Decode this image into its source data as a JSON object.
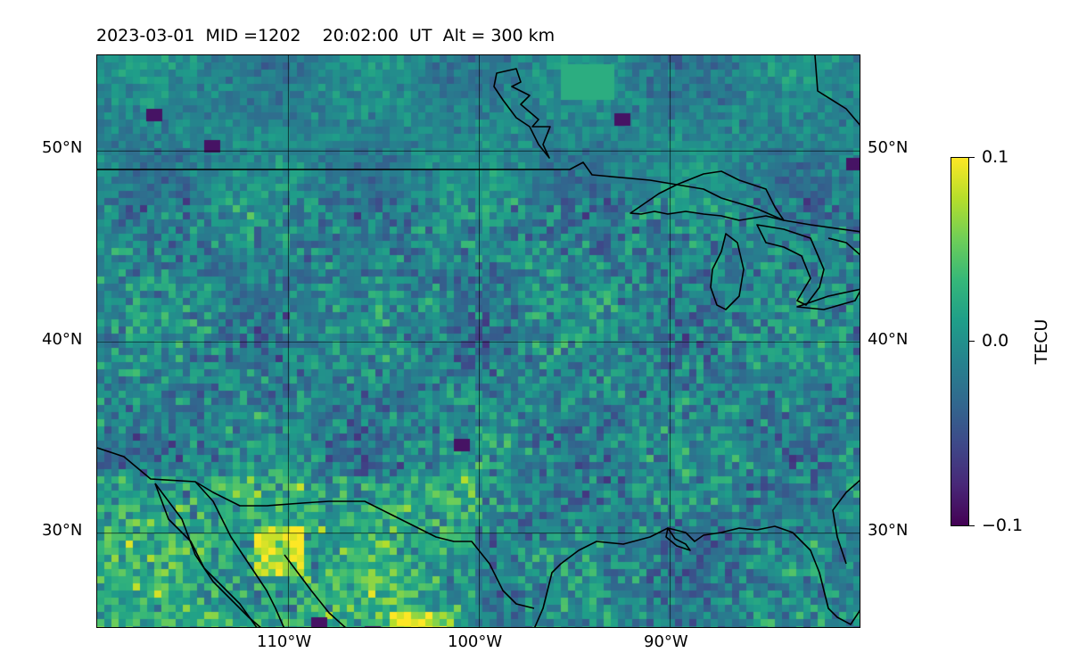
{
  "title": "2023-03-01  MID =1202    20:02:00  UT  Alt = 300 km",
  "map": {
    "type": "heatmap",
    "extent_lon": [
      -120,
      -80
    ],
    "extent_lat": [
      25,
      55
    ],
    "colormap": "viridis",
    "gridlines": true,
    "coastlines": true
  },
  "axes": {
    "lat_labels": [
      "50°N",
      "40°N",
      "30°N"
    ],
    "lat_values": [
      50,
      40,
      30
    ],
    "lon_labels": [
      "110°W",
      "100°W",
      "90°W"
    ],
    "lon_values": [
      -110,
      -100,
      -90
    ]
  },
  "colorbar": {
    "label": "TECU",
    "min": -0.1,
    "max": 0.1,
    "tick_labels": [
      "0.1",
      "0.0",
      "−0.1"
    ],
    "tick_values": [
      0.1,
      0.0,
      -0.1
    ]
  },
  "colors": {
    "low": "#440154",
    "mid": "#21918c",
    "high": "#fde725",
    "coast": "#000000"
  }
}
